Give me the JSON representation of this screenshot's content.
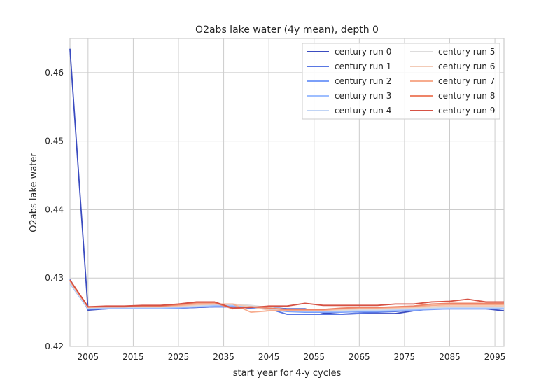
{
  "chart_data": {
    "type": "line",
    "title": "O2abs lake water (4y mean), depth 0",
    "xlabel": "start year for 4-y cycles",
    "ylabel": "O2abs lake water",
    "xlim": [
      2001,
      2097
    ],
    "ylim": [
      0.42,
      0.465
    ],
    "xticks": [
      2005,
      2015,
      2025,
      2035,
      2045,
      2055,
      2065,
      2075,
      2085,
      2095
    ],
    "xtick_labels": [
      "2005",
      "2015",
      "2025",
      "2035",
      "2045",
      "2055",
      "2065",
      "2075",
      "2085",
      "2095"
    ],
    "yticks": [
      0.42,
      0.43,
      0.44,
      0.45,
      0.46
    ],
    "ytick_labels": [
      "0.42",
      "0.43",
      "0.44",
      "0.45",
      "0.46"
    ],
    "grid": true,
    "legend_position": "top-right",
    "x": [
      2001,
      2005,
      2009,
      2013,
      2017,
      2021,
      2025,
      2029,
      2033,
      2037,
      2041,
      2045,
      2049,
      2053,
      2057,
      2061,
      2065,
      2069,
      2073,
      2077,
      2081,
      2085,
      2089,
      2093,
      2097
    ],
    "series": [
      {
        "name": "century run 0",
        "color": "#3b4cc0",
        "values": [
          0.4635,
          0.4253,
          0.4255,
          0.4256,
          0.4256,
          0.4256,
          0.4256,
          0.4257,
          0.4258,
          0.4258,
          0.4256,
          0.4257,
          0.4255,
          0.4255,
          0.4249,
          0.4247,
          0.4248,
          0.4248,
          0.4248,
          0.4252,
          0.4255,
          0.4255,
          0.4255,
          0.4255,
          0.4252
        ]
      },
      {
        "name": "century run 1",
        "color": "#5977e3",
        "values": [
          0.4298,
          0.4254,
          0.4255,
          0.4256,
          0.4256,
          0.4256,
          0.4256,
          0.4257,
          0.4258,
          0.4258,
          0.4256,
          0.4255,
          0.4247,
          0.4247,
          0.4247,
          0.4247,
          0.4249,
          0.425,
          0.4251,
          0.4253,
          0.4255,
          0.4255,
          0.4255,
          0.4255,
          0.4255
        ]
      },
      {
        "name": "century run 2",
        "color": "#7b9ff9",
        "values": [
          0.4294,
          0.4255,
          0.4256,
          0.4256,
          0.4256,
          0.4256,
          0.4256,
          0.4258,
          0.4259,
          0.4259,
          0.4257,
          0.4254,
          0.4251,
          0.425,
          0.425,
          0.425,
          0.4251,
          0.4251,
          0.4252,
          0.4253,
          0.4254,
          0.4255,
          0.4255,
          0.4255,
          0.4255
        ]
      },
      {
        "name": "century run 3",
        "color": "#9ebeff",
        "values": [
          0.4292,
          0.4255,
          0.4256,
          0.4256,
          0.4256,
          0.4256,
          0.4257,
          0.4258,
          0.426,
          0.426,
          0.4258,
          0.4255,
          0.4252,
          0.4251,
          0.4251,
          0.4251,
          0.4252,
          0.4252,
          0.4253,
          0.4254,
          0.4255,
          0.4256,
          0.4256,
          0.4256,
          0.4256
        ]
      },
      {
        "name": "century run 4",
        "color": "#c0d4f5",
        "values": [
          0.4293,
          0.4256,
          0.4257,
          0.4257,
          0.4257,
          0.4257,
          0.4258,
          0.4259,
          0.4261,
          0.4261,
          0.4259,
          0.4256,
          0.4253,
          0.4252,
          0.4252,
          0.4252,
          0.4253,
          0.4253,
          0.4254,
          0.4255,
          0.4256,
          0.4257,
          0.4257,
          0.4257,
          0.4257
        ]
      },
      {
        "name": "century run 5",
        "color": "#dddcdc",
        "values": [
          0.4294,
          0.4257,
          0.4258,
          0.4258,
          0.4258,
          0.4258,
          0.4259,
          0.426,
          0.4262,
          0.4262,
          0.426,
          0.4257,
          0.4254,
          0.4253,
          0.4253,
          0.4253,
          0.4254,
          0.4254,
          0.4255,
          0.4256,
          0.4257,
          0.4258,
          0.4258,
          0.4258,
          0.4258
        ]
      },
      {
        "name": "century run 6",
        "color": "#f2cbb7",
        "values": [
          0.4295,
          0.4257,
          0.4258,
          0.4258,
          0.4258,
          0.4258,
          0.4259,
          0.4261,
          0.4262,
          0.4262,
          0.4258,
          0.4253,
          0.4253,
          0.4253,
          0.4253,
          0.4254,
          0.4255,
          0.4255,
          0.4256,
          0.4257,
          0.4258,
          0.4259,
          0.4259,
          0.4259,
          0.4259
        ]
      },
      {
        "name": "century run 7",
        "color": "#f7ac8e",
        "values": [
          0.4296,
          0.4257,
          0.4258,
          0.4258,
          0.4259,
          0.4259,
          0.426,
          0.4262,
          0.4262,
          0.4262,
          0.425,
          0.4252,
          0.4253,
          0.4253,
          0.4253,
          0.4255,
          0.4256,
          0.4256,
          0.4257,
          0.4258,
          0.426,
          0.4261,
          0.4261,
          0.4261,
          0.4261
        ]
      },
      {
        "name": "century run 8",
        "color": "#ee8468",
        "values": [
          0.4297,
          0.4258,
          0.4258,
          0.4258,
          0.4259,
          0.4259,
          0.4261,
          0.4264,
          0.4264,
          0.4255,
          0.4258,
          0.4256,
          0.4254,
          0.4254,
          0.4254,
          0.4256,
          0.4257,
          0.4257,
          0.4258,
          0.4259,
          0.4262,
          0.4263,
          0.4263,
          0.4263,
          0.4263
        ]
      },
      {
        "name": "century run 9",
        "color": "#d65244",
        "values": [
          0.4297,
          0.4258,
          0.4259,
          0.4259,
          0.426,
          0.426,
          0.4262,
          0.4265,
          0.4265,
          0.4256,
          0.4257,
          0.4259,
          0.4259,
          0.4263,
          0.426,
          0.426,
          0.426,
          0.426,
          0.4262,
          0.4262,
          0.4265,
          0.4266,
          0.4269,
          0.4265,
          0.4265
        ]
      }
    ]
  }
}
